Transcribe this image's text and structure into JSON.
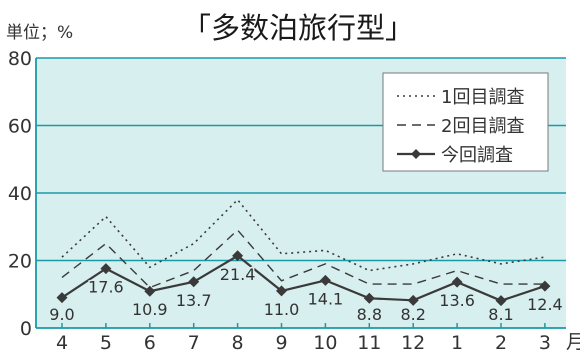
{
  "chart_data": {
    "type": "line",
    "title": "「多数泊旅行型」",
    "ylabel": "単位；%",
    "categories": [
      "4",
      "5",
      "6",
      "7",
      "8",
      "9",
      "10",
      "11",
      "12",
      "1",
      "2",
      "3"
    ],
    "x_unit": "月",
    "ylim": [
      0,
      80
    ],
    "yticks": [
      0,
      20,
      40,
      60,
      80
    ],
    "grid": true,
    "legend": "top-right",
    "colors": {
      "plot_bg": "#d7efee",
      "gridline": "#1a9aa8",
      "axis": "#1a9aa8",
      "series": "#3a3a3a"
    },
    "series": [
      {
        "name": "1回目調査",
        "style": "dotted",
        "values": [
          21,
          33,
          18,
          25,
          38,
          22,
          23,
          17,
          19,
          22,
          19,
          21
        ]
      },
      {
        "name": "2回目調査",
        "style": "dashed",
        "values": [
          15,
          25,
          12,
          17,
          29,
          14,
          19,
          13,
          13,
          17,
          13,
          13
        ]
      },
      {
        "name": "今回調査",
        "style": "solid-marker",
        "values": [
          9.0,
          17.6,
          10.9,
          13.7,
          21.4,
          11.0,
          14.1,
          8.8,
          8.2,
          13.6,
          8.1,
          12.4
        ],
        "labels": [
          "9.0",
          "17.6",
          "10.9",
          "13.7",
          "21.4",
          "11.0",
          "14.1",
          "8.8",
          "8.2",
          "13.6",
          "8.1",
          "12.4"
        ]
      }
    ]
  }
}
